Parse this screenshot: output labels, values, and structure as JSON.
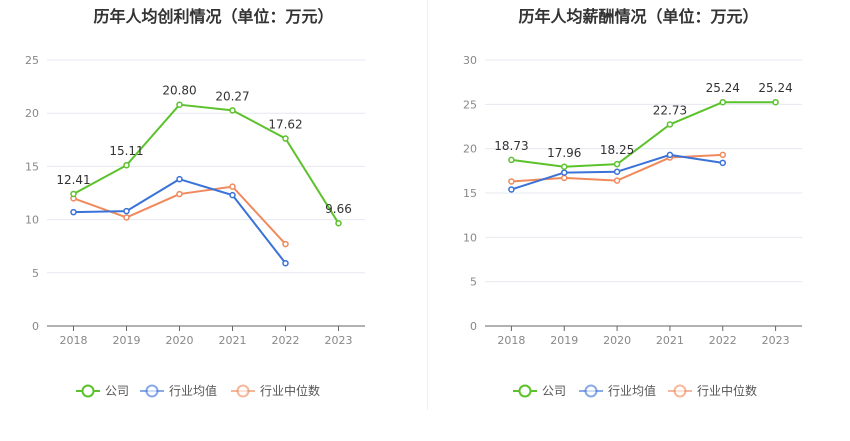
{
  "chart_data": [
    {
      "type": "line",
      "title": "历年人均创利情况（单位：万元）",
      "categories": [
        "2018",
        "2019",
        "2020",
        "2021",
        "2022",
        "2023"
      ],
      "ylim": [
        0,
        25
      ],
      "yticks": [
        "0",
        "5",
        "10",
        "15",
        "20",
        "25"
      ],
      "grid": true,
      "legend_position": "bottom",
      "series": [
        {
          "name": "公司",
          "color": "#5cc22c",
          "values": [
            12.41,
            15.11,
            20.8,
            20.27,
            17.62,
            9.66
          ],
          "labels": [
            "12.41",
            "15.11",
            "20.80",
            "20.27",
            "17.62",
            "9.66"
          ]
        },
        {
          "name": "行业均值",
          "color": "#3a72d8",
          "values": [
            10.7,
            10.8,
            13.8,
            12.3,
            5.9,
            null
          ]
        },
        {
          "name": "行业中位数",
          "color": "#f08a5d",
          "values": [
            12.0,
            10.2,
            12.4,
            13.1,
            7.7,
            null
          ]
        }
      ]
    },
    {
      "type": "line",
      "title": "历年人均薪酬情况（单位：万元）",
      "categories": [
        "2018",
        "2019",
        "2020",
        "2021",
        "2022",
        "2023"
      ],
      "ylim": [
        0,
        30
      ],
      "yticks": [
        "0",
        "5",
        "10",
        "15",
        "20",
        "25",
        "30"
      ],
      "grid": true,
      "legend_position": "bottom",
      "series": [
        {
          "name": "公司",
          "color": "#5cc22c",
          "values": [
            18.73,
            17.96,
            18.25,
            22.73,
            25.24,
            25.24
          ],
          "labels": [
            "18.73",
            "17.96",
            "18.25",
            "22.73",
            "25.24",
            "25.24"
          ]
        },
        {
          "name": "行业均值",
          "color": "#3a72d8",
          "values": [
            15.4,
            17.3,
            17.4,
            19.3,
            18.4,
            null
          ]
        },
        {
          "name": "行业中位数",
          "color": "#f08a5d",
          "values": [
            16.3,
            16.7,
            16.4,
            19.0,
            19.3,
            null
          ]
        }
      ]
    }
  ]
}
